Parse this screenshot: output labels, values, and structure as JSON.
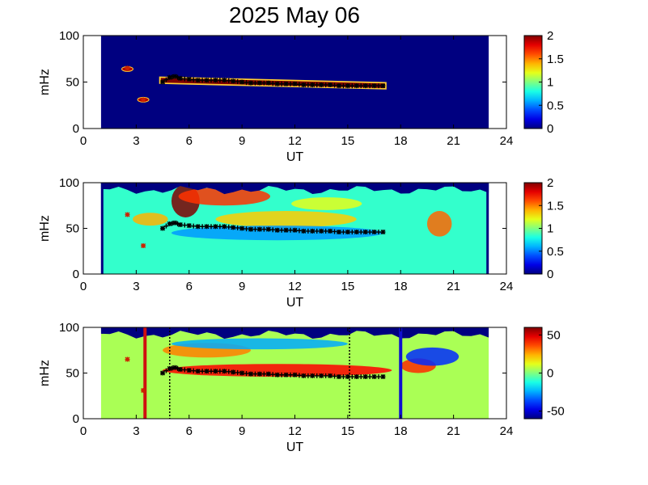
{
  "figure": {
    "title": "2025 May 06"
  },
  "colors": {
    "jet_low": "#000080",
    "jet_high": "#800000",
    "ridge_marker": "#000000",
    "ridge_marker_alt": "#cc2200",
    "event_line_red": "#d01010",
    "event_line_blue": "#1010d0"
  },
  "chart_data": [
    {
      "type": "heatmap",
      "name": "panel-1",
      "xlabel": "UT",
      "ylabel": "mHz",
      "xlim": [
        0,
        24
      ],
      "ylim": [
        0,
        100
      ],
      "xticks": [
        "0",
        "3",
        "6",
        "9",
        "12",
        "15",
        "18",
        "21",
        "24"
      ],
      "yticks": [
        "0",
        "50",
        "100"
      ],
      "colorbar": {
        "range": [
          0,
          2
        ],
        "ticks": [
          "0",
          "0.5",
          "1",
          "1.5",
          "2"
        ]
      },
      "data_time_range": [
        1,
        23
      ],
      "background_value": 0,
      "features": [
        {
          "kind": "band",
          "t_start": 4.3,
          "t_end": 17.2,
          "f_start": 52,
          "f_end": 46,
          "half_width": 4,
          "value": 2.0
        }
      ],
      "spots": [
        {
          "t": 2.5,
          "f": 64,
          "value": 1.9
        },
        {
          "t": 3.4,
          "f": 31,
          "value": 1.9
        }
      ]
    },
    {
      "type": "heatmap",
      "name": "panel-2",
      "xlabel": "UT",
      "ylabel": "mHz",
      "xlim": [
        0,
        24
      ],
      "ylim": [
        0,
        100
      ],
      "xticks": [
        "0",
        "3",
        "6",
        "9",
        "12",
        "15",
        "18",
        "21",
        "24"
      ],
      "yticks": [
        "0",
        "50",
        "100"
      ],
      "colorbar": {
        "range": [
          0,
          2
        ],
        "ticks": [
          "0",
          "0.5",
          "1",
          "1.5",
          "2"
        ]
      },
      "data_time_range": [
        1,
        23
      ],
      "background_value": 0.85,
      "top_cutoff_mhz": 92,
      "features": [
        {
          "kind": "blob",
          "t": 5.8,
          "f": 80,
          "rt": 0.8,
          "rf": 18,
          "value": 2.0
        },
        {
          "kind": "blob",
          "t": 8.0,
          "f": 85,
          "rt": 2.6,
          "rf": 10,
          "value": 1.65
        },
        {
          "kind": "blob",
          "t": 11.5,
          "f": 60,
          "rt": 4.0,
          "rf": 9,
          "value": 1.35
        },
        {
          "kind": "blob",
          "t": 13.8,
          "f": 77,
          "rt": 2.0,
          "rf": 7,
          "value": 1.2
        },
        {
          "kind": "blob",
          "t": 20.2,
          "f": 55,
          "rt": 0.7,
          "rf": 14,
          "value": 1.55
        },
        {
          "kind": "blob",
          "t": 3.8,
          "f": 60,
          "rt": 1.0,
          "rf": 7,
          "value": 1.4
        },
        {
          "kind": "blob",
          "t": 11.0,
          "f": 45,
          "rt": 6.0,
          "rf": 8,
          "value": 0.55
        }
      ]
    },
    {
      "type": "heatmap",
      "name": "panel-3",
      "xlabel": "UT",
      "ylabel": "mHz",
      "xlim": [
        0,
        24
      ],
      "ylim": [
        0,
        100
      ],
      "xticks": [
        "0",
        "3",
        "6",
        "9",
        "12",
        "15",
        "18",
        "21",
        "24"
      ],
      "yticks": [
        "0",
        "50",
        "100"
      ],
      "colorbar": {
        "range": [
          -60,
          60
        ],
        "ticks": [
          "-50",
          "0",
          "50"
        ]
      },
      "data_time_range": [
        1,
        23
      ],
      "background_value": 5,
      "top_cutoff_mhz": 92,
      "features": [
        {
          "kind": "blob",
          "t": 11.0,
          "f": 53,
          "rt": 6.5,
          "rf": 7,
          "value": 45
        },
        {
          "kind": "blob",
          "t": 19.0,
          "f": 58,
          "rt": 1.0,
          "rf": 8,
          "value": 40
        },
        {
          "kind": "blob",
          "t": 7.0,
          "f": 75,
          "rt": 2.5,
          "rf": 8,
          "value": 30
        },
        {
          "kind": "blob",
          "t": 19.8,
          "f": 68,
          "rt": 1.5,
          "rf": 10,
          "value": -40
        },
        {
          "kind": "blob",
          "t": 10.0,
          "f": 82,
          "rt": 5.0,
          "rf": 6,
          "value": -25
        }
      ],
      "event_lines": [
        {
          "t": 3.5,
          "color_key": "event_line_red",
          "style": "solid"
        },
        {
          "t": 18.0,
          "color_key": "event_line_blue",
          "style": "solid"
        },
        {
          "t": 4.9,
          "color_key": "ridge_marker",
          "style": "dotted"
        },
        {
          "t": 15.1,
          "color_key": "ridge_marker",
          "style": "dotted"
        }
      ]
    }
  ],
  "ridge_markers": {
    "times": [
      2.5,
      3.4,
      4.5,
      4.9,
      5.2,
      5.5,
      6.0,
      6.5,
      7.0,
      7.5,
      8.0,
      8.5,
      9.0,
      9.5,
      10.0,
      10.5,
      11.0,
      11.5,
      12.0,
      12.5,
      13.0,
      13.5,
      14.0,
      14.5,
      15.0,
      15.5,
      16.0,
      16.5,
      17.0
    ],
    "freqs": [
      65,
      31,
      50,
      55,
      56,
      54,
      53,
      52,
      52,
      52,
      52,
      51,
      50,
      49,
      49,
      49,
      48,
      48,
      48,
      47,
      47,
      47,
      47,
      46,
      46,
      46,
      46,
      46,
      46
    ]
  }
}
